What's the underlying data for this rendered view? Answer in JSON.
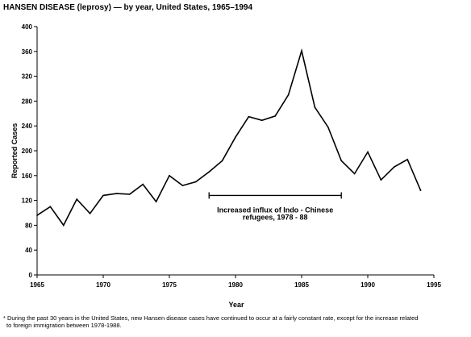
{
  "chart_data": {
    "type": "line",
    "title": "HANSEN DISEASE (leprosy) — by year, United States, 1965–1994",
    "xlabel": "Year",
    "ylabel": "Reported Cases",
    "xlim": [
      1965,
      1995
    ],
    "ylim": [
      0,
      400
    ],
    "x_ticks": [
      "1965",
      "1970",
      "1975",
      "1980",
      "1985",
      "1990",
      "1995"
    ],
    "y_ticks": [
      "0",
      "40",
      "80",
      "120",
      "160",
      "200",
      "240",
      "280",
      "320",
      "360",
      "400"
    ],
    "grid": false,
    "series": [
      {
        "x": [
          1965,
          1966,
          1967,
          1968,
          1969,
          1970,
          1971,
          1972,
          1973,
          1974,
          1975,
          1976,
          1977,
          1978,
          1979,
          1980,
          1981,
          1982,
          1983,
          1984,
          1985,
          1986,
          1987,
          1988,
          1989,
          1990,
          1991,
          1992,
          1993,
          1994
        ],
        "values": [
          96,
          110,
          80,
          122,
          99,
          128,
          131,
          130,
          146,
          118,
          160,
          144,
          150,
          166,
          184,
          222,
          255,
          249,
          256,
          290,
          361,
          270,
          238,
          184,
          163,
          198,
          153,
          174,
          186,
          136
        ]
      }
    ],
    "annotation": {
      "line1": "Increased influx of Indo - Chinese",
      "line2": "refugees, 1978 - 88",
      "x_start": 1978,
      "x_end": 1988,
      "y": 128
    },
    "footnote": {
      "line1": "* During the past 30 years in the United States, new Hansen disease cases have continued to occur at a fairly constant rate, except for the increase related",
      "line2": "to foreign immigration between 1978-1988."
    }
  }
}
